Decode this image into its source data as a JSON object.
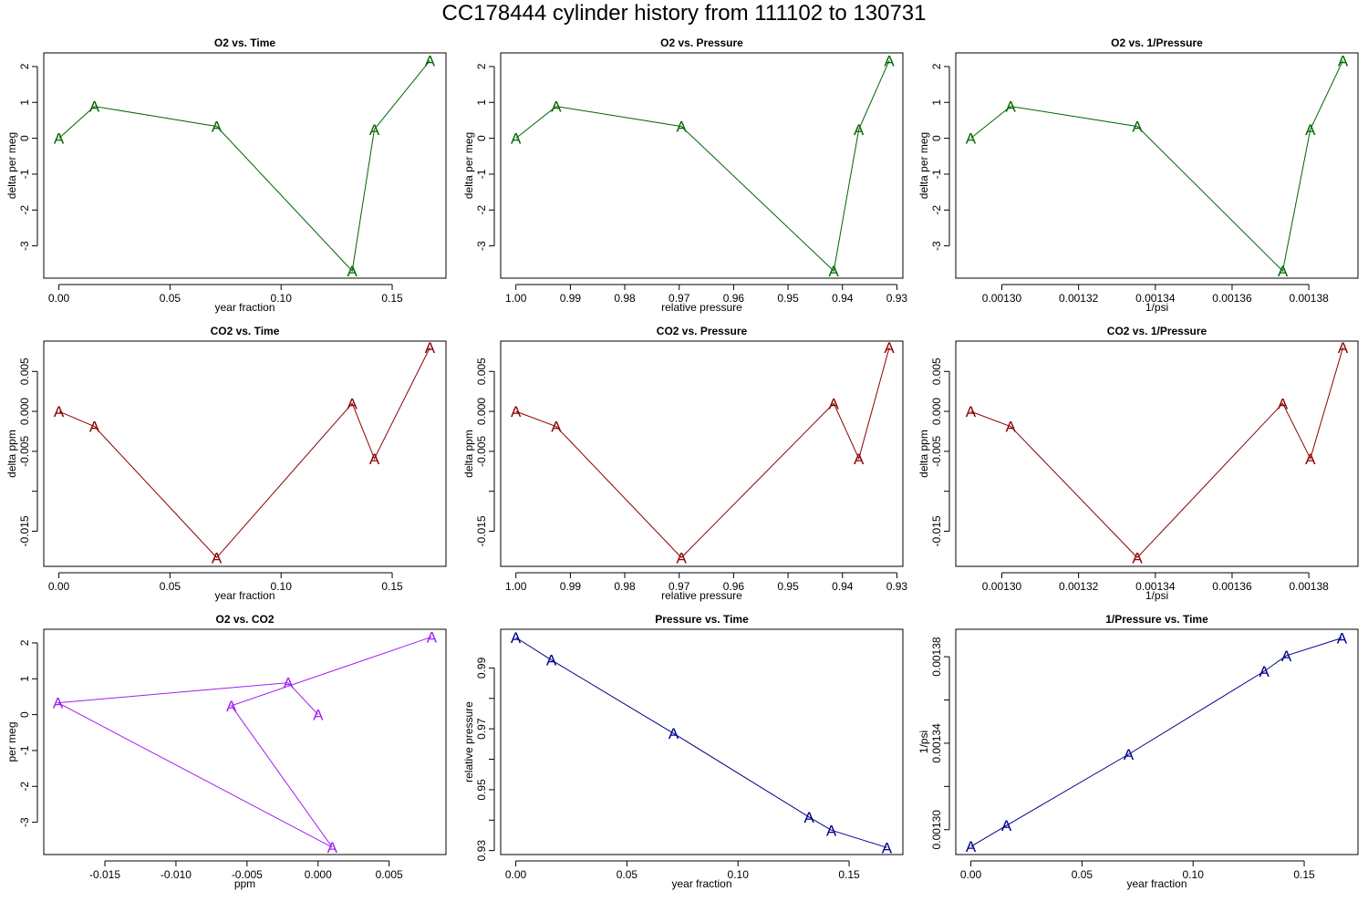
{
  "figure": {
    "title": "CC178444   cylinder history from  111102  to  130731"
  },
  "colors": {
    "o2": "#006400",
    "co2": "#8b0000",
    "o2_vs_co2": "#a020f0",
    "pressure": "#00008b",
    "frame": "#000000"
  },
  "point_symbol": "A",
  "chart_data": [
    {
      "id": "o2-vs-time",
      "type": "line",
      "title": "O2 vs. Time",
      "xlabel": "year fraction",
      "ylabel": "delta per meg",
      "color_key": "o2",
      "xlim": [
        -0.0068,
        0.1742
      ],
      "ylim": [
        -3.9,
        2.38
      ],
      "xreverse": false,
      "xticks": [
        0.0,
        0.05,
        0.1,
        0.15
      ],
      "xtick_labels": [
        "0.00",
        "0.05",
        "0.10",
        "0.15"
      ],
      "yticks": [
        -3,
        -2,
        -1,
        0,
        1,
        2
      ],
      "ytick_labels": [
        "-3",
        "-2",
        "-1",
        "0",
        "1",
        "2"
      ],
      "x": [
        0.0,
        0.016,
        0.071,
        0.132,
        0.142,
        0.167
      ],
      "y": [
        0.0,
        0.89,
        0.33,
        -3.7,
        0.25,
        2.17
      ]
    },
    {
      "id": "o2-vs-pressure",
      "type": "line",
      "title": "O2 vs. Pressure",
      "xlabel": "relative pressure",
      "ylabel": "delta per meg",
      "color_key": "o2",
      "xlim": [
        1.0028,
        0.9289
      ],
      "ylim": [
        -3.9,
        2.38
      ],
      "xreverse": true,
      "xticks": [
        1.0,
        0.99,
        0.98,
        0.97,
        0.96,
        0.95,
        0.94,
        0.93
      ],
      "xtick_labels": [
        "1.00",
        "0.99",
        "0.98",
        "0.97",
        "0.96",
        "0.95",
        "0.94",
        "0.93"
      ],
      "yticks": [
        -3,
        -2,
        -1,
        0,
        1,
        2
      ],
      "ytick_labels": [
        "-3",
        "-2",
        "-1",
        "0",
        "1",
        "2"
      ],
      "x": [
        1.0,
        0.9926,
        0.9696,
        0.9416,
        0.937,
        0.9314
      ],
      "y": [
        0.0,
        0.89,
        0.33,
        -3.7,
        0.25,
        2.17
      ]
    },
    {
      "id": "o2-vs-inv-pressure",
      "type": "line",
      "title": "O2 vs. 1/Pressure",
      "xlabel": "1/psi",
      "ylabel": "delta per meg",
      "color_key": "o2",
      "xlim": [
        0.001288,
        0.0013928
      ],
      "ylim": [
        -3.9,
        2.38
      ],
      "xreverse": false,
      "xticks": [
        0.0013,
        0.00132,
        0.00134,
        0.00136,
        0.00138
      ],
      "xtick_labels": [
        "0.00130",
        "0.00132",
        "0.00134",
        "0.00136",
        "0.00138"
      ],
      "yticks": [
        -3,
        -2,
        -1,
        0,
        1,
        2
      ],
      "ytick_labels": [
        "-3",
        "-2",
        "-1",
        "0",
        "1",
        "2"
      ],
      "x": [
        0.0012919,
        0.0013023,
        0.0013353,
        0.0013732,
        0.0013804,
        0.0013889
      ],
      "y": [
        0.0,
        0.89,
        0.33,
        -3.7,
        0.25,
        2.17
      ]
    },
    {
      "id": "co2-vs-time",
      "type": "line",
      "title": "CO2 vs. Time",
      "xlabel": "year fraction",
      "ylabel": "delta ppm",
      "color_key": "co2",
      "xlim": [
        -0.0068,
        0.1742
      ],
      "ylim": [
        -0.0194,
        0.0088
      ],
      "xreverse": false,
      "xticks": [
        0.0,
        0.05,
        0.1,
        0.15
      ],
      "xtick_labels": [
        "0.00",
        "0.05",
        "0.10",
        "0.15"
      ],
      "yticks": [
        0.005,
        0.0,
        -0.005,
        -0.01,
        -0.015
      ],
      "ytick_labels": [
        "0.005",
        "0.000",
        "-0.005",
        "",
        "-0.015"
      ],
      "x": [
        0.0,
        0.016,
        0.071,
        0.132,
        0.142,
        0.167
      ],
      "y": [
        0.0,
        -0.0019,
        -0.0183,
        0.001,
        -0.0059,
        0.008
      ]
    },
    {
      "id": "co2-vs-pressure",
      "type": "line",
      "title": "CO2 vs. Pressure",
      "xlabel": "relative pressure",
      "ylabel": "delta ppm",
      "color_key": "co2",
      "xlim": [
        1.0028,
        0.9289
      ],
      "ylim": [
        -0.0194,
        0.0088
      ],
      "xreverse": true,
      "xticks": [
        1.0,
        0.99,
        0.98,
        0.97,
        0.96,
        0.95,
        0.94,
        0.93
      ],
      "xtick_labels": [
        "1.00",
        "0.99",
        "0.98",
        "0.97",
        "0.96",
        "0.95",
        "0.94",
        "0.93"
      ],
      "yticks": [
        0.005,
        0.0,
        -0.005,
        -0.01,
        -0.015
      ],
      "ytick_labels": [
        "0.005",
        "0.000",
        "-0.005",
        "",
        "-0.015"
      ],
      "x": [
        1.0,
        0.9926,
        0.9696,
        0.9416,
        0.937,
        0.9314
      ],
      "y": [
        0.0,
        -0.0019,
        -0.0183,
        0.001,
        -0.0059,
        0.008
      ]
    },
    {
      "id": "co2-vs-inv-pressure",
      "type": "line",
      "title": "CO2 vs. 1/Pressure",
      "xlabel": "1/psi",
      "ylabel": "delta ppm",
      "color_key": "co2",
      "xlim": [
        0.001288,
        0.0013928
      ],
      "ylim": [
        -0.0194,
        0.0088
      ],
      "xreverse": false,
      "xticks": [
        0.0013,
        0.00132,
        0.00134,
        0.00136,
        0.00138
      ],
      "xtick_labels": [
        "0.00130",
        "0.00132",
        "0.00134",
        "0.00136",
        "0.00138"
      ],
      "yticks": [
        0.005,
        0.0,
        -0.005,
        -0.01,
        -0.015
      ],
      "ytick_labels": [
        "0.005",
        "0.000",
        "-0.005",
        "",
        "-0.015"
      ],
      "x": [
        0.0012919,
        0.0013023,
        0.0013353,
        0.0013732,
        0.0013804,
        0.0013889
      ],
      "y": [
        0.0,
        -0.0019,
        -0.0183,
        0.001,
        -0.0059,
        0.008
      ]
    },
    {
      "id": "o2-vs-co2",
      "type": "line",
      "title": "O2 vs. CO2",
      "xlabel": "ppm",
      "ylabel": "per meg",
      "color_key": "o2_vs_co2",
      "xlim": [
        -0.0193,
        0.009
      ],
      "ylim": [
        -3.9,
        2.38
      ],
      "xreverse": false,
      "xticks": [
        -0.015,
        -0.01,
        -0.005,
        0.0,
        0.005
      ],
      "xtick_labels": [
        "-0.015",
        "-0.010",
        "-0.005",
        "0.000",
        "0.005"
      ],
      "yticks": [
        -3,
        -2,
        -1,
        0,
        1,
        2
      ],
      "ytick_labels": [
        "-3",
        "-2",
        "-1",
        "0",
        "1",
        "2"
      ],
      "x": [
        0.0,
        -0.0021,
        -0.0183,
        0.001,
        -0.0061,
        0.008
      ],
      "y": [
        0.0,
        0.89,
        0.33,
        -3.7,
        0.25,
        2.17
      ]
    },
    {
      "id": "pressure-vs-time",
      "type": "line",
      "title": "Pressure vs. Time",
      "xlabel": "year fraction",
      "ylabel": "relative pressure",
      "color_key": "pressure",
      "xlim": [
        -0.0068,
        0.1742
      ],
      "ylim": [
        0.9287,
        1.0027
      ],
      "xreverse": false,
      "xticks": [
        0.0,
        0.05,
        0.1,
        0.15
      ],
      "xtick_labels": [
        "0.00",
        "0.05",
        "0.10",
        "0.15"
      ],
      "yticks": [
        0.93,
        0.94,
        0.95,
        0.96,
        0.97,
        0.98,
        0.99
      ],
      "ytick_labels": [
        "0.93",
        "",
        "0.95",
        "",
        "0.97",
        "",
        "0.99"
      ],
      "x": [
        0.0,
        0.016,
        0.071,
        0.132,
        0.142,
        0.167
      ],
      "y": [
        1.0,
        0.9926,
        0.9685,
        0.941,
        0.9367,
        0.931
      ]
    },
    {
      "id": "inv-pressure-vs-time",
      "type": "line",
      "title": "1/Pressure vs. Time",
      "xlabel": "year fraction",
      "ylabel": "1/psi",
      "color_key": "pressure",
      "xlim": [
        -0.0068,
        0.1742
      ],
      "ylim": [
        0.0012885,
        0.0013927
      ],
      "xreverse": false,
      "xticks": [
        0.0,
        0.05,
        0.1,
        0.15
      ],
      "xtick_labels": [
        "0.00",
        "0.05",
        "0.10",
        "0.15"
      ],
      "yticks": [
        0.0013,
        0.00132,
        0.00134,
        0.00136,
        0.00138
      ],
      "ytick_labels": [
        "0.00130",
        "",
        "0.00134",
        "",
        "0.00138"
      ],
      "x": [
        0.0,
        0.016,
        0.071,
        0.132,
        0.142,
        0.167
      ],
      "y": [
        0.0012922,
        0.0013019,
        0.0013349,
        0.0013733,
        0.0013805,
        0.0013887
      ]
    }
  ]
}
